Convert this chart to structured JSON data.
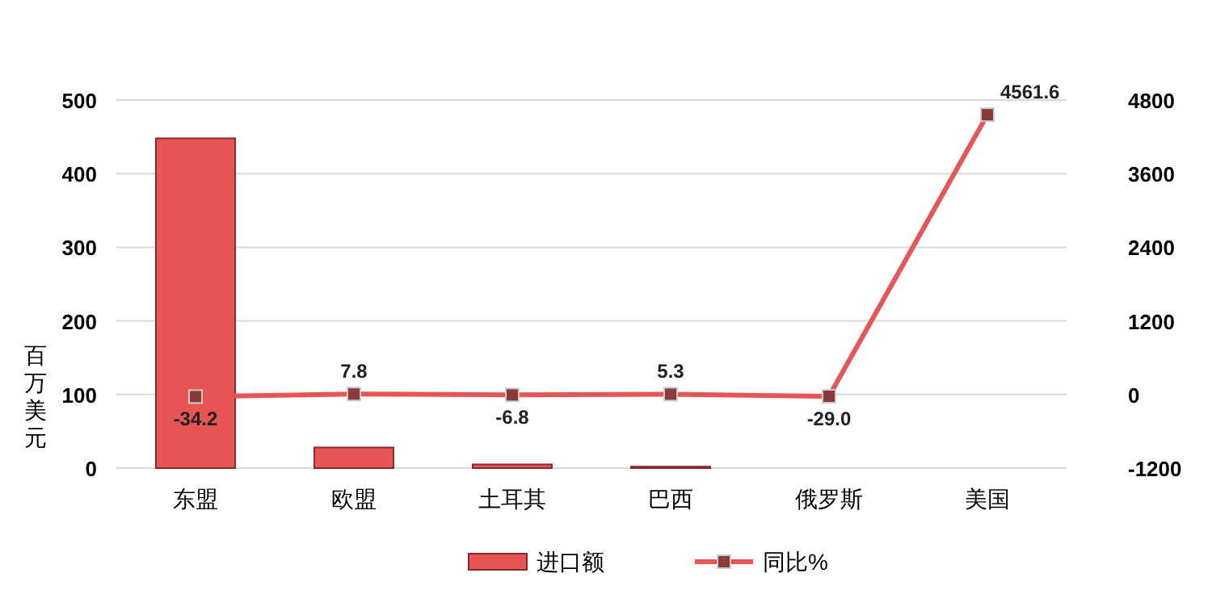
{
  "chart_data": {
    "type": "bar",
    "ylabel": "百万美元",
    "categories": [
      "东盟",
      "欧盟",
      "土耳其",
      "巴西",
      "俄罗斯",
      "美国"
    ],
    "series": [
      {
        "name": "进口额",
        "color": "#e85555",
        "values": [
          448,
          28,
          5,
          2,
          0,
          0
        ]
      },
      {
        "name": "同比%",
        "type": "line",
        "axis": "y2",
        "color": "#e85555",
        "marker": "square",
        "values": [
          -34.2,
          7.8,
          -6.8,
          5.3,
          -29.0,
          4561.6
        ],
        "value_labels": [
          "-34.2",
          "7.8",
          "-6.8",
          "5.3",
          "-29.0",
          "4561.6"
        ]
      }
    ],
    "ylim": [
      0,
      500
    ],
    "yticks": [
      0,
      100,
      200,
      300,
      400,
      500
    ],
    "y2lim": [
      -1200,
      4800
    ],
    "y2ticks": [
      -1200,
      0,
      1200,
      2400,
      3600,
      4800
    ],
    "grid": "y",
    "legend": "bottom"
  }
}
